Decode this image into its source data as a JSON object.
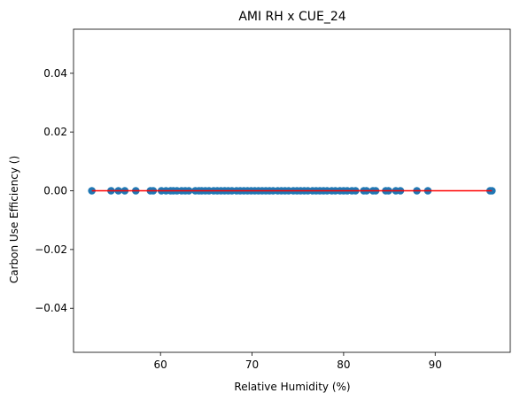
{
  "chart_data": {
    "type": "scatter",
    "title": "AMI RH x CUE_24",
    "xlabel": "Relative Humidity (%)",
    "ylabel": "Carbon Use Efficiency ()",
    "xlim": [
      50.5,
      98.2
    ],
    "ylim": [
      -0.055,
      0.055
    ],
    "xticks": [
      60,
      70,
      80,
      90
    ],
    "yticks": [
      0.04,
      0.02,
      0.0,
      -0.02,
      -0.04
    ],
    "ytick_labels": [
      "0.04",
      "0.02",
      "0.00",
      "−0.02",
      "−0.04"
    ],
    "grid": false,
    "legend": "none",
    "point_color": "#1f77b4",
    "fit_line_color": "#ff0000",
    "fit_line": {
      "x": [
        52.5,
        96.2
      ],
      "y": [
        0.0,
        0.0
      ]
    },
    "series": [
      {
        "x": [
          52.5,
          54.6,
          55.4,
          56.1,
          57.3,
          58.9,
          59.2,
          60.1,
          60.6,
          61.1,
          61.4,
          61.8,
          62.3,
          62.7,
          63.1,
          63.8,
          64.2,
          64.5,
          64.9,
          65.3,
          65.8,
          66.2,
          66.6,
          67.0,
          67.4,
          67.8,
          68.3,
          68.7,
          69.1,
          69.5,
          69.9,
          70.3,
          70.7,
          71.1,
          71.5,
          71.9,
          72.3,
          72.8,
          73.2,
          73.6,
          74.0,
          74.5,
          74.9,
          75.3,
          75.7,
          76.1,
          76.6,
          77.0,
          77.4,
          77.8,
          78.2,
          78.7,
          79.1,
          79.6,
          80.0,
          80.4,
          80.9,
          81.3,
          82.2,
          82.5,
          83.2,
          83.5,
          84.6,
          84.9,
          85.7,
          86.2,
          88.0,
          89.2,
          96.0,
          96.2
        ],
        "y": [
          0.0,
          0.0,
          0.0,
          0.0,
          0.0,
          0.0,
          0.0,
          0.0,
          0.0,
          0.0,
          0.0,
          0.0,
          0.0,
          0.0,
          0.0,
          0.0,
          0.0,
          0.0,
          0.0,
          0.0,
          0.0,
          0.0,
          0.0,
          0.0,
          0.0,
          0.0,
          0.0,
          0.0,
          0.0,
          0.0,
          0.0,
          0.0,
          0.0,
          0.0,
          0.0,
          0.0,
          0.0,
          0.0,
          0.0,
          0.0,
          0.0,
          0.0,
          0.0,
          0.0,
          0.0,
          0.0,
          0.0,
          0.0,
          0.0,
          0.0,
          0.0,
          0.0,
          0.0,
          0.0,
          0.0,
          0.0,
          0.0,
          0.0,
          0.0,
          0.0,
          0.0,
          0.0,
          0.0,
          0.0,
          0.0,
          0.0,
          0.0,
          0.0,
          0.0,
          0.0
        ]
      }
    ]
  }
}
